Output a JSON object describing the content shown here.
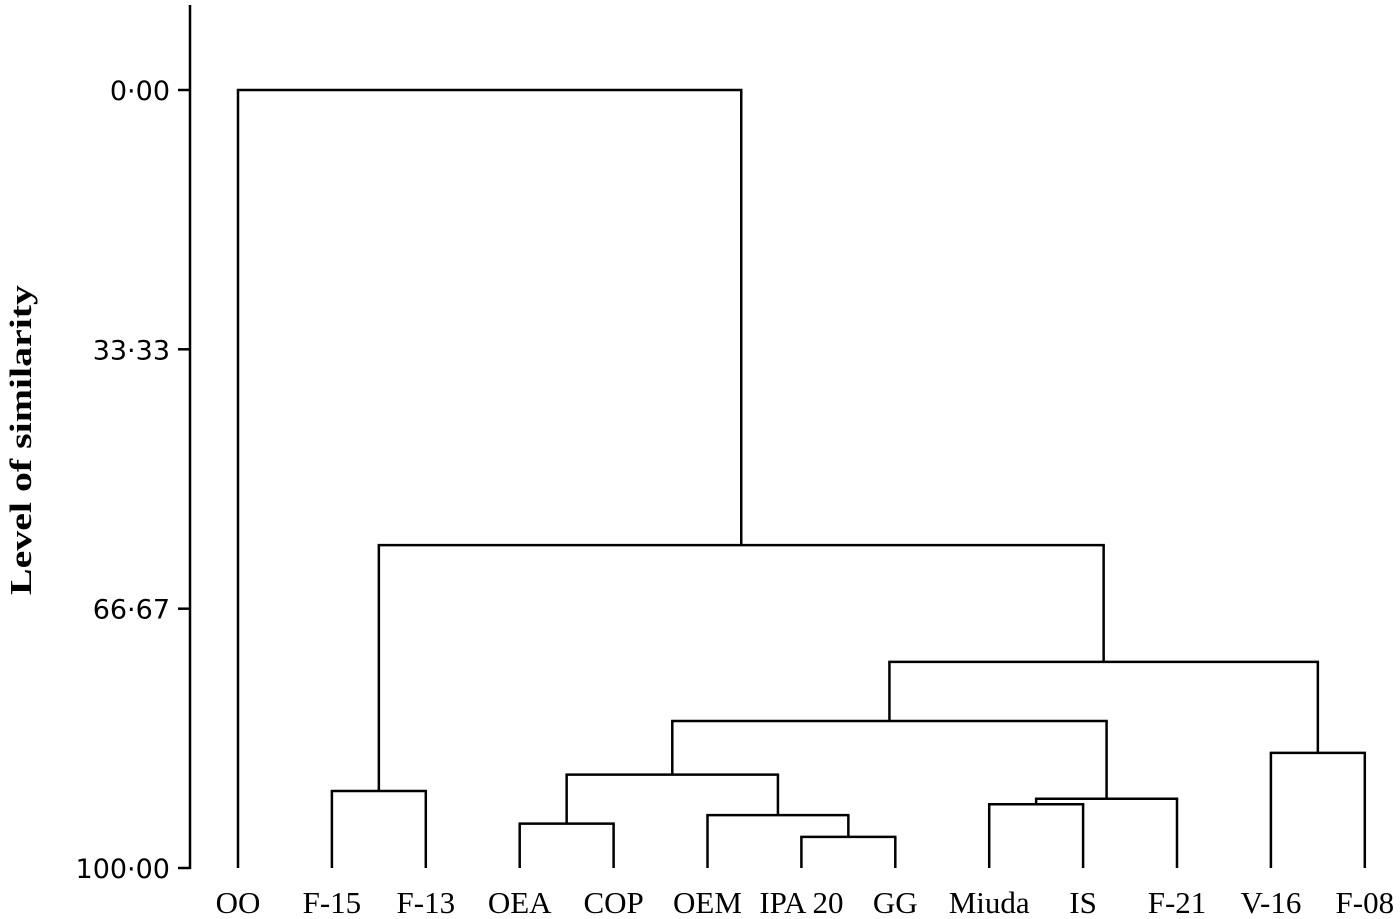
{
  "chart_data": {
    "type": "dendrogram",
    "title": "",
    "xlabel": "",
    "ylabel": "Level of similarity",
    "ylim": [
      0,
      100
    ],
    "y_inverted": true,
    "yticks": [
      "0·00",
      "33·33",
      "66·67",
      "100·00"
    ],
    "ytick_values": [
      0,
      33.33,
      66.67,
      100
    ],
    "leaves": [
      "OO",
      "F-15",
      "F-13",
      "OEA",
      "COP",
      "OEM",
      "IPA 20",
      "GG",
      "Miuda",
      "IS",
      "F-21",
      "V-16",
      "F-08"
    ],
    "tree": {
      "similarity": 0.0,
      "children": [
        "OO",
        {
          "similarity": 58.5,
          "children": [
            {
              "similarity": 90.1,
              "children": [
                "F-15",
                "F-13"
              ]
            },
            {
              "similarity": 73.5,
              "children": [
                {
                  "similarity": 81.1,
                  "children": [
                    {
                      "similarity": 88.0,
                      "children": [
                        {
                          "similarity": 94.3,
                          "children": [
                            "OEA",
                            "COP"
                          ]
                        },
                        {
                          "similarity": 93.2,
                          "children": [
                            "OEM",
                            {
                              "similarity": 96.0,
                              "children": [
                                "IPA 20",
                                "GG"
                              ]
                            }
                          ]
                        }
                      ]
                    },
                    {
                      "similarity": 91.1,
                      "children": [
                        {
                          "similarity": 91.8,
                          "children": [
                            "Miuda",
                            "IS"
                          ]
                        },
                        "F-21"
                      ]
                    }
                  ]
                },
                {
                  "similarity": 85.2,
                  "children": [
                    "V-16",
                    "F-08"
                  ]
                }
              ]
            }
          ]
        }
      ]
    },
    "grid": false,
    "legend": "none",
    "line_color": "#000000"
  }
}
